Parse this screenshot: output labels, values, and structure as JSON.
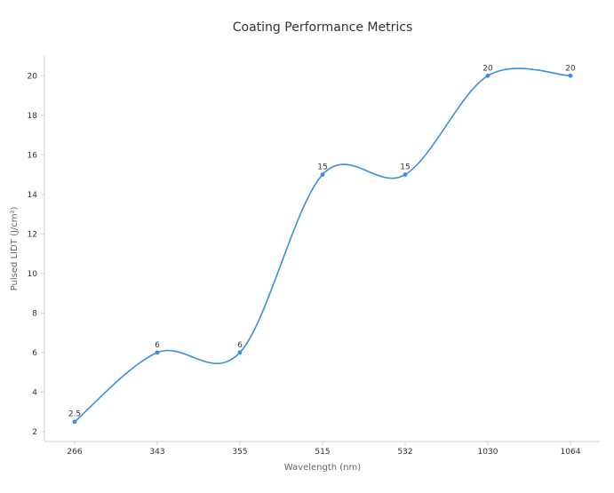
{
  "chart_data": {
    "type": "line",
    "title": "Coating Performance Metrics",
    "xlabel": "Wavelength (nm)",
    "ylabel": "Pulsed LIDT (J/cm²)",
    "categories": [
      "266",
      "343",
      "355",
      "515",
      "532",
      "1030",
      "1064"
    ],
    "series": [
      {
        "values": [
          2.5,
          6,
          6,
          15,
          15,
          20,
          20
        ],
        "labels": [
          "2.5",
          "6",
          "6",
          "15",
          "15",
          "20",
          "20"
        ],
        "color": "#3a8ee6"
      }
    ],
    "ylim": [
      1.5,
      21
    ],
    "yticks": [
      "2",
      "4",
      "6",
      "8",
      "10",
      "12",
      "14",
      "16",
      "18",
      "20"
    ],
    "grid": false,
    "smooth": true
  }
}
